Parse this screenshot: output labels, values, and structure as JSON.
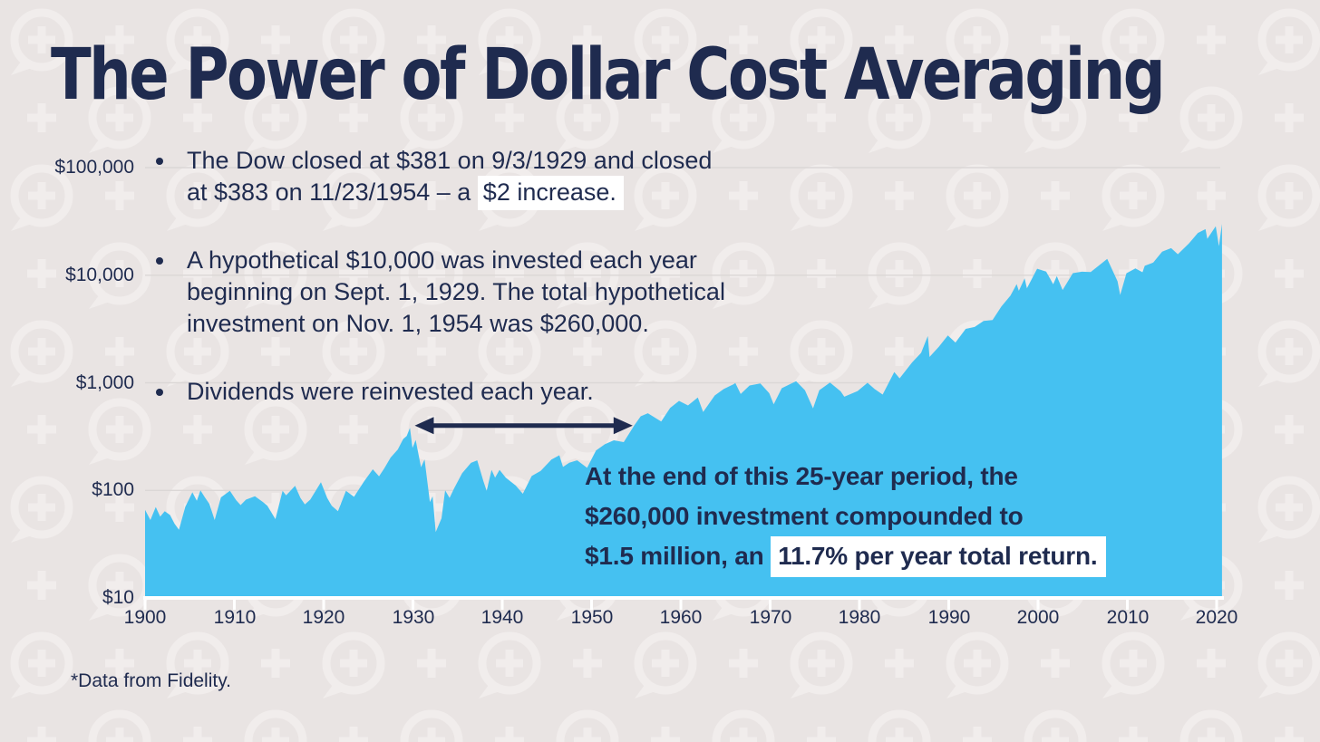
{
  "title": "The Power of Dollar Cost Averaging",
  "footnote": "*Data from Fidelity.",
  "colors": {
    "background": "#e9e4e3",
    "watermark": "#f1edec",
    "navy": "#1f2b4f",
    "area_blue": "#45c1f1",
    "highlight": "#ffffff",
    "gridline": "#dbd7d6",
    "axis_line": "#ffffff"
  },
  "bullets": [
    {
      "lines": [
        {
          "text": "The Dow closed at $381 on 9/3/1929 and closed"
        },
        {
          "text": "at $383 on 11/23/1954 – a ",
          "highlight": "$2 increase."
        }
      ]
    },
    {
      "lines": [
        {
          "text": "A hypothetical $10,000 was invested each year"
        },
        {
          "text": "beginning on Sept. 1, 1929. The total hypothetical"
        },
        {
          "text": "investment on Nov. 1, 1954 was $260,000."
        }
      ]
    },
    {
      "lines": [
        {
          "text": "Dividends were reinvested each year."
        }
      ]
    }
  ],
  "callout": {
    "lines": [
      {
        "text": "At the end of this 25-year period, the"
      },
      {
        "text": "$260,000 investment compounded to"
      },
      {
        "text": "$1.5 million, an ",
        "highlight": "11.7% per year total return."
      }
    ]
  },
  "chart_data": {
    "type": "area",
    "title": "The Power of Dollar Cost Averaging",
    "series_label": "The Dow",
    "xlabel": "",
    "ylabel": "",
    "y_scale": "log",
    "y_range": [
      10,
      100000
    ],
    "x_range": [
      1900,
      2021
    ],
    "grid": true,
    "legend": "none",
    "x_ticks": [
      "1900",
      "1910",
      "1920",
      "1930",
      "1940",
      "1950",
      "1960",
      "1970",
      "1980",
      "1990",
      "2000",
      "2010",
      "2020"
    ],
    "y_ticks": [
      {
        "label": "$100,000",
        "value": 100000
      },
      {
        "label": "$10,000",
        "value": 10000
      },
      {
        "label": "$1,000",
        "value": 1000
      },
      {
        "label": "$100",
        "value": 100
      },
      {
        "label": "$10",
        "value": 10
      }
    ],
    "annotation_arrow": {
      "from_year": 1930.2,
      "to_year": 1954.6,
      "at_value": 400
    },
    "points": [
      [
        1900,
        66
      ],
      [
        1900.6,
        53
      ],
      [
        1901.2,
        70
      ],
      [
        1901.7,
        57
      ],
      [
        1902.2,
        64
      ],
      [
        1902.8,
        59
      ],
      [
        1903.3,
        49
      ],
      [
        1903.8,
        43
      ],
      [
        1904.5,
        70
      ],
      [
        1905.3,
        96
      ],
      [
        1905.8,
        80
      ],
      [
        1906.2,
        100
      ],
      [
        1906.7,
        86
      ],
      [
        1907.2,
        75
      ],
      [
        1907.8,
        53
      ],
      [
        1908.5,
        86
      ],
      [
        1909.5,
        99
      ],
      [
        1910.2,
        81
      ],
      [
        1910.7,
        73
      ],
      [
        1911.3,
        82
      ],
      [
        1912.3,
        88
      ],
      [
        1913.2,
        78
      ],
      [
        1913.7,
        72
      ],
      [
        1914.6,
        54
      ],
      [
        1915.4,
        99
      ],
      [
        1915.8,
        90
      ],
      [
        1916.8,
        110
      ],
      [
        1917.4,
        85
      ],
      [
        1917.9,
        74
      ],
      [
        1918.5,
        82
      ],
      [
        1919.7,
        119
      ],
      [
        1920.4,
        85
      ],
      [
        1920.9,
        72
      ],
      [
        1921.6,
        64
      ],
      [
        1922.5,
        99
      ],
      [
        1923.4,
        87
      ],
      [
        1924.5,
        120
      ],
      [
        1925.5,
        157
      ],
      [
        1926.2,
        135
      ],
      [
        1926.8,
        161
      ],
      [
        1927.5,
        202
      ],
      [
        1928.3,
        240
      ],
      [
        1928.9,
        300
      ],
      [
        1929.3,
        320
      ],
      [
        1929.67,
        381
      ],
      [
        1929.95,
        248
      ],
      [
        1930.3,
        294
      ],
      [
        1930.9,
        164
      ],
      [
        1931.3,
        194
      ],
      [
        1931.9,
        78
      ],
      [
        1932.2,
        88
      ],
      [
        1932.55,
        41
      ],
      [
        1933.2,
        55
      ],
      [
        1933.6,
        100
      ],
      [
        1934.1,
        85
      ],
      [
        1934.6,
        104
      ],
      [
        1935.5,
        144
      ],
      [
        1936.5,
        180
      ],
      [
        1937.2,
        190
      ],
      [
        1937.9,
        121
      ],
      [
        1938.25,
        99
      ],
      [
        1938.8,
        155
      ],
      [
        1939.2,
        131
      ],
      [
        1939.7,
        155
      ],
      [
        1940.4,
        131
      ],
      [
        1941.5,
        111
      ],
      [
        1942.3,
        93
      ],
      [
        1943.3,
        136
      ],
      [
        1944.3,
        152
      ],
      [
        1945.5,
        193
      ],
      [
        1946.4,
        212
      ],
      [
        1946.8,
        165
      ],
      [
        1947.5,
        181
      ],
      [
        1948.4,
        190
      ],
      [
        1949.5,
        162
      ],
      [
        1950.5,
        235
      ],
      [
        1951.5,
        269
      ],
      [
        1952.5,
        292
      ],
      [
        1953.6,
        281
      ],
      [
        1954.8,
        404
      ],
      [
        1955.5,
        488
      ],
      [
        1956.3,
        521
      ],
      [
        1957.8,
        436
      ],
      [
        1958.8,
        584
      ],
      [
        1959.8,
        679
      ],
      [
        1960.8,
        616
      ],
      [
        1961.9,
        731
      ],
      [
        1962.5,
        536
      ],
      [
        1963.8,
        763
      ],
      [
        1964.8,
        874
      ],
      [
        1965.9,
        969
      ],
      [
        1966.1,
        995
      ],
      [
        1966.7,
        786
      ],
      [
        1967.7,
        943
      ],
      [
        1968.9,
        985
      ],
      [
        1969.9,
        800
      ],
      [
        1970.4,
        631
      ],
      [
        1971.3,
        890
      ],
      [
        1972.9,
        1036
      ],
      [
        1973.9,
        851
      ],
      [
        1974.8,
        578
      ],
      [
        1975.5,
        852
      ],
      [
        1976.7,
        1005
      ],
      [
        1977.9,
        831
      ],
      [
        1978.3,
        742
      ],
      [
        1979.8,
        839
      ],
      [
        1980.9,
        1000
      ],
      [
        1981.7,
        875
      ],
      [
        1982.6,
        777
      ],
      [
        1983.9,
        1259
      ],
      [
        1984.5,
        1100
      ],
      [
        1985.9,
        1547
      ],
      [
        1986.9,
        1896
      ],
      [
        1987.65,
        2722
      ],
      [
        1987.85,
        1739
      ],
      [
        1988.9,
        2169
      ],
      [
        1989.9,
        2753
      ],
      [
        1990.75,
        2365
      ],
      [
        1991.9,
        3169
      ],
      [
        1992.9,
        3301
      ],
      [
        1993.9,
        3754
      ],
      [
        1994.9,
        3834
      ],
      [
        1995.9,
        5117
      ],
      [
        1996.9,
        6448
      ],
      [
        1997.6,
        8259
      ],
      [
        1997.85,
        7161
      ],
      [
        1998.5,
        9338
      ],
      [
        1998.75,
        7539
      ],
      [
        1999.9,
        11497
      ],
      [
        2000.9,
        10788
      ],
      [
        2001.7,
        8236
      ],
      [
        2002.1,
        9800
      ],
      [
        2002.75,
        7286
      ],
      [
        2003.9,
        10454
      ],
      [
        2004.9,
        10783
      ],
      [
        2005.9,
        10718
      ],
      [
        2006.9,
        12463
      ],
      [
        2007.75,
        14164
      ],
      [
        2008.9,
        8776
      ],
      [
        2009.2,
        6547
      ],
      [
        2009.9,
        10428
      ],
      [
        2010.9,
        11578
      ],
      [
        2011.7,
        10655
      ],
      [
        2011.95,
        12218
      ],
      [
        2012.9,
        13104
      ],
      [
        2013.9,
        16577
      ],
      [
        2014.9,
        17823
      ],
      [
        2015.65,
        15666
      ],
      [
        2016.9,
        19763
      ],
      [
        2017.9,
        24719
      ],
      [
        2018.75,
        26828
      ],
      [
        2018.95,
        21792
      ],
      [
        2019.9,
        28538
      ],
      [
        2020.25,
        18592
      ],
      [
        2020.6,
        30000
      ]
    ]
  }
}
